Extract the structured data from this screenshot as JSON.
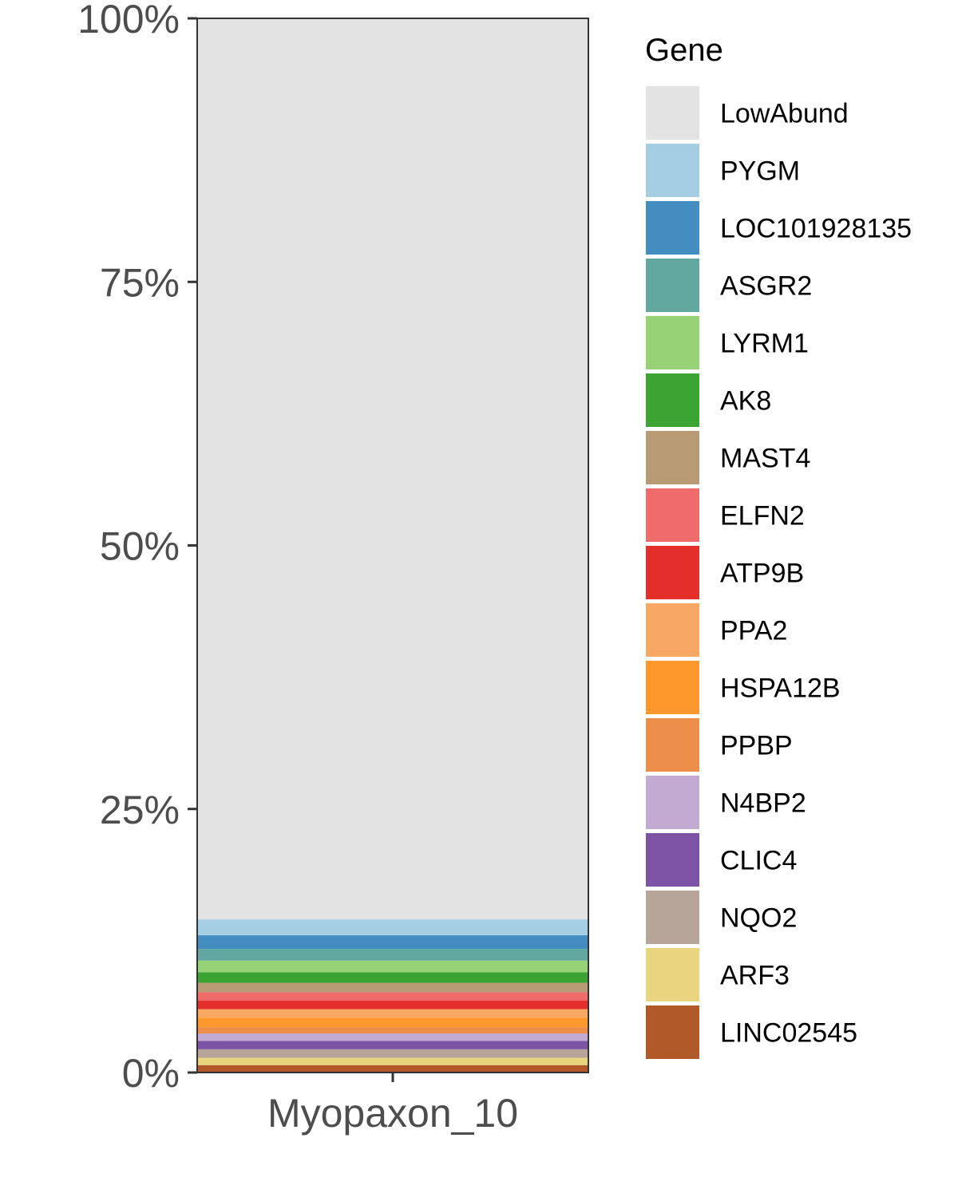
{
  "chart_data": {
    "type": "bar",
    "stacked": true,
    "percent_axis": true,
    "categories": [
      "Myopaxon_10"
    ],
    "ylim": [
      0,
      100
    ],
    "y_ticks": [
      0,
      25,
      50,
      75,
      100
    ],
    "y_tick_labels": [
      "0%",
      "25%",
      "50%",
      "75%",
      "100%"
    ],
    "grid": false,
    "legend_title": "Gene",
    "legend_position": "right",
    "series": [
      {
        "name": "LowAbund",
        "color": "#e3e3e3",
        "values": [
          85.3
        ]
      },
      {
        "name": "PYGM",
        "color": "#a6cee3",
        "values": [
          1.5
        ]
      },
      {
        "name": "LOC101928135",
        "color": "#438dc0",
        "values": [
          1.3
        ]
      },
      {
        "name": "ASGR2",
        "color": "#63a8a0",
        "values": [
          1.1
        ]
      },
      {
        "name": "LYRM1",
        "color": "#98d277",
        "values": [
          1.1
        ]
      },
      {
        "name": "AK8",
        "color": "#3ba432",
        "values": [
          1.0
        ]
      },
      {
        "name": "MAST4",
        "color": "#b89b74",
        "values": [
          0.9
        ]
      },
      {
        "name": "ELFN2",
        "color": "#f06c6b",
        "values": [
          0.8
        ]
      },
      {
        "name": "ATP9B",
        "color": "#e42e2a",
        "values": [
          0.8
        ]
      },
      {
        "name": "PPA2",
        "color": "#f8a863",
        "values": [
          0.8
        ]
      },
      {
        "name": "HSPA12B",
        "color": "#fe982c",
        "values": [
          0.9
        ]
      },
      {
        "name": "PPBP",
        "color": "#ed8f4a",
        "values": [
          0.6
        ]
      },
      {
        "name": "N4BP2",
        "color": "#c3aad2",
        "values": [
          0.7
        ]
      },
      {
        "name": "CLIC4",
        "color": "#7d54a5",
        "values": [
          0.8
        ]
      },
      {
        "name": "NQO2",
        "color": "#b7a599",
        "values": [
          0.8
        ]
      },
      {
        "name": "ARF3",
        "color": "#e9d47f",
        "values": [
          0.7
        ]
      },
      {
        "name": "LINC02545",
        "color": "#b15928",
        "values": [
          0.7
        ]
      }
    ]
  }
}
